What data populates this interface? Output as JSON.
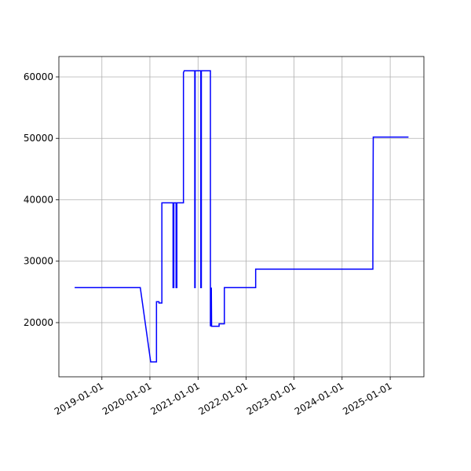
{
  "chart_data": {
    "type": "line",
    "x": [
      "2018-06-08",
      "2019-10-20",
      "2020-01-07",
      "2020-02-20",
      "2020-02-20",
      "2020-03-10",
      "2020-03-10",
      "2020-04-01",
      "2020-04-01",
      "2020-06-25",
      "2020-06-25",
      "2020-07-01",
      "2020-07-01",
      "2020-07-18",
      "2020-07-18",
      "2020-07-24",
      "2020-07-24",
      "2020-09-12",
      "2020-09-12",
      "2020-09-18",
      "2020-12-07",
      "2020-12-07",
      "2020-12-10",
      "2020-12-10",
      "2021-01-22",
      "2021-01-22",
      "2021-01-26",
      "2021-01-26",
      "2021-04-05",
      "2021-04-05",
      "2021-04-12",
      "2021-04-14",
      "2021-06-10",
      "2021-06-10",
      "2021-07-20",
      "2021-07-20",
      "2022-03-15",
      "2022-03-15",
      "2024-08-22",
      "2024-08-22",
      "2024-08-25",
      "2025-05-20"
    ],
    "series": [
      {
        "color": "#0000ff",
        "values": [
          25700,
          25700,
          13600,
          13600,
          23400,
          23400,
          23200,
          23200,
          39500,
          39500,
          25700,
          25700,
          39500,
          39500,
          25700,
          25700,
          39500,
          39500,
          60700,
          61000,
          61000,
          25700,
          25700,
          61000,
          61000,
          25700,
          25700,
          61000,
          61000,
          19400,
          25700,
          19400,
          19400,
          19800,
          19800,
          25700,
          25700,
          28700,
          28700,
          33800,
          50200,
          50200
        ]
      }
    ],
    "xlim": [
      "2018-02-08",
      "2025-09-14"
    ],
    "xticks": [
      "2019-01-01",
      "2020-01-01",
      "2021-01-01",
      "2022-01-01",
      "2023-01-01",
      "2024-01-01",
      "2025-01-01"
    ],
    "ylim": [
      11180,
      63320
    ],
    "yticks": [
      20000,
      30000,
      40000,
      50000,
      60000
    ],
    "grid": true
  }
}
